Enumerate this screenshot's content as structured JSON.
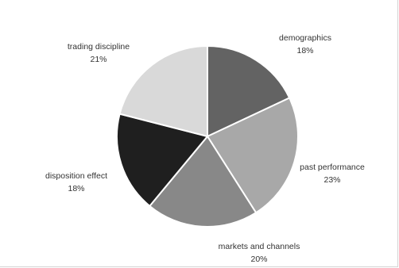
{
  "chart_data": {
    "type": "pie",
    "title": "",
    "slices": [
      {
        "label": "demographics",
        "value": 18,
        "pct_label": "18%",
        "color": "#636363"
      },
      {
        "label": "past performance",
        "value": 23,
        "pct_label": "23%",
        "color": "#a8a8a8"
      },
      {
        "label": "markets and channels",
        "value": 20,
        "pct_label": "20%",
        "color": "#888888"
      },
      {
        "label": "disposition effect",
        "value": 18,
        "pct_label": "18%",
        "color": "#1f1f1f"
      },
      {
        "label": "trading discipline",
        "value": 21,
        "pct_label": "21%",
        "color": "#d9d9d9"
      }
    ],
    "start_angle_deg": 0,
    "direction": "clockwise",
    "legend": "none",
    "labels": "outside"
  }
}
